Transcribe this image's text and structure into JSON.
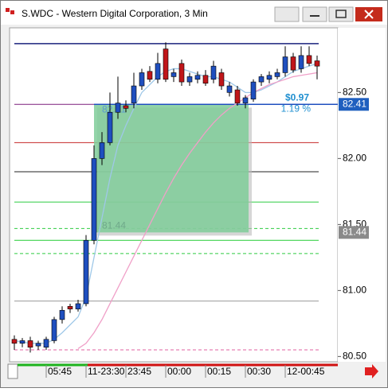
{
  "chart_data": {
    "type": "candlestick",
    "title": "S.WDC - Western Digital Corporation, 3 Min",
    "categories": [
      null,
      null,
      null,
      null,
      "05:45",
      null,
      null,
      null,
      null,
      "11-23:30",
      null,
      null,
      null,
      null,
      "23:45",
      null,
      null,
      null,
      null,
      "00:00",
      null,
      null,
      null,
      null,
      "00:15",
      null,
      null,
      null,
      null,
      "00:30",
      null,
      null,
      null,
      null,
      "12-00:45",
      null,
      null,
      null,
      null
    ],
    "open": [
      80.63,
      80.6,
      80.62,
      80.58,
      80.57,
      80.62,
      80.78,
      80.88,
      80.86,
      80.9,
      81.38,
      82.0,
      82.12,
      82.35,
      82.4,
      82.42,
      82.55,
      82.66,
      82.6,
      82.83,
      82.62,
      82.72,
      82.58,
      82.6,
      82.63,
      82.6,
      82.65,
      82.5,
      82.52,
      82.42,
      82.45,
      82.58,
      82.6,
      82.62,
      82.65,
      82.77,
      82.68,
      82.78,
      82.74
    ],
    "high": [
      80.66,
      80.64,
      80.65,
      80.62,
      80.65,
      80.8,
      80.88,
      80.9,
      80.93,
      81.42,
      82.1,
      82.2,
      82.5,
      82.62,
      82.44,
      82.65,
      82.68,
      82.7,
      82.8,
      82.88,
      82.68,
      82.75,
      82.65,
      82.66,
      82.67,
      82.74,
      82.68,
      82.58,
      82.55,
      82.48,
      82.6,
      82.64,
      82.66,
      82.68,
      82.85,
      82.8,
      82.85,
      82.85,
      82.78
    ],
    "low": [
      80.55,
      80.57,
      80.53,
      80.55,
      80.55,
      80.6,
      80.75,
      80.83,
      80.84,
      80.88,
      81.35,
      81.95,
      82.1,
      82.3,
      82.35,
      82.38,
      82.52,
      82.58,
      82.57,
      82.58,
      82.58,
      82.55,
      82.55,
      82.57,
      82.55,
      82.57,
      82.52,
      82.47,
      82.4,
      82.38,
      82.43,
      82.55,
      82.57,
      82.6,
      82.62,
      82.65,
      82.65,
      82.7,
      82.6
    ],
    "close": [
      80.6,
      80.62,
      80.57,
      80.6,
      80.63,
      80.78,
      80.85,
      80.86,
      80.9,
      81.38,
      82.0,
      82.12,
      82.35,
      82.42,
      82.38,
      82.55,
      82.65,
      82.6,
      82.72,
      82.6,
      82.65,
      82.58,
      82.62,
      82.63,
      82.57,
      82.7,
      82.55,
      82.55,
      82.42,
      82.46,
      82.58,
      82.62,
      82.63,
      82.65,
      82.77,
      82.67,
      82.78,
      82.72,
      82.7
    ],
    "up_color": "#1f4fbf",
    "down_color": "#c0161a",
    "moving_averages": [
      {
        "color": "#9fc8e8",
        "values": [
          80.62,
          80.61,
          80.6,
          80.6,
          80.6,
          80.63,
          80.68,
          80.74,
          80.8,
          80.95,
          81.25,
          81.55,
          81.85,
          82.1,
          82.25,
          82.38,
          82.5,
          82.56,
          82.62,
          82.66,
          82.68,
          82.68,
          82.66,
          82.64,
          82.62,
          82.62,
          82.6,
          82.58,
          82.54,
          82.5,
          82.5,
          82.52,
          82.55,
          82.58,
          82.62,
          82.66,
          82.68,
          82.7,
          82.72
        ]
      },
      {
        "color": "#f0a0c8",
        "values": [
          null,
          null,
          null,
          null,
          null,
          null,
          null,
          null,
          80.56,
          80.6,
          80.68,
          80.78,
          80.9,
          81.02,
          81.14,
          81.26,
          81.38,
          81.5,
          81.62,
          81.74,
          81.85,
          81.95,
          82.04,
          82.12,
          82.2,
          82.27,
          82.33,
          82.38,
          82.42,
          82.46,
          82.5,
          82.53,
          82.56,
          82.58,
          82.6,
          82.62,
          82.63,
          82.64,
          82.65
        ]
      }
    ],
    "levels": [
      {
        "value": 82.87,
        "color": "#1a237e",
        "dash": false
      },
      {
        "value": 82.41,
        "color": "#7b1f7b",
        "dash": false
      },
      {
        "value": 82.12,
        "color": "#c62828",
        "dash": false
      },
      {
        "value": 81.9,
        "color": "#222222",
        "dash": false
      },
      {
        "value": 81.67,
        "color": "#2ecc40",
        "dash": false
      },
      {
        "value": 81.47,
        "color": "#2ecc40",
        "dash": true
      },
      {
        "value": 81.38,
        "color": "#22cc33",
        "dash": false
      },
      {
        "value": 81.28,
        "color": "#2ecc40",
        "dash": true
      },
      {
        "value": 80.92,
        "color": "#999999",
        "dash": false
      },
      {
        "value": 80.55,
        "color": "#e060a0",
        "dash": true
      }
    ],
    "trade": {
      "entry": 81.44,
      "exit": 82.41,
      "profit": "$0.97",
      "percent": "1.19 %"
    },
    "price_tags": [
      {
        "value": 82.41,
        "color": "#1f5fbf"
      },
      {
        "value": 81.44,
        "color": "#8a8a8a"
      }
    ],
    "ylim": [
      80.46,
      82.99
    ],
    "yticks": [
      {
        "value": 80.5,
        "label": "80.50"
      },
      {
        "value": 81.0,
        "label": "81.00"
      },
      {
        "value": 81.5,
        "label": "81.50"
      },
      {
        "value": 82.0,
        "label": "82.00"
      },
      {
        "value": 82.5,
        "label": "82.50"
      }
    ]
  }
}
